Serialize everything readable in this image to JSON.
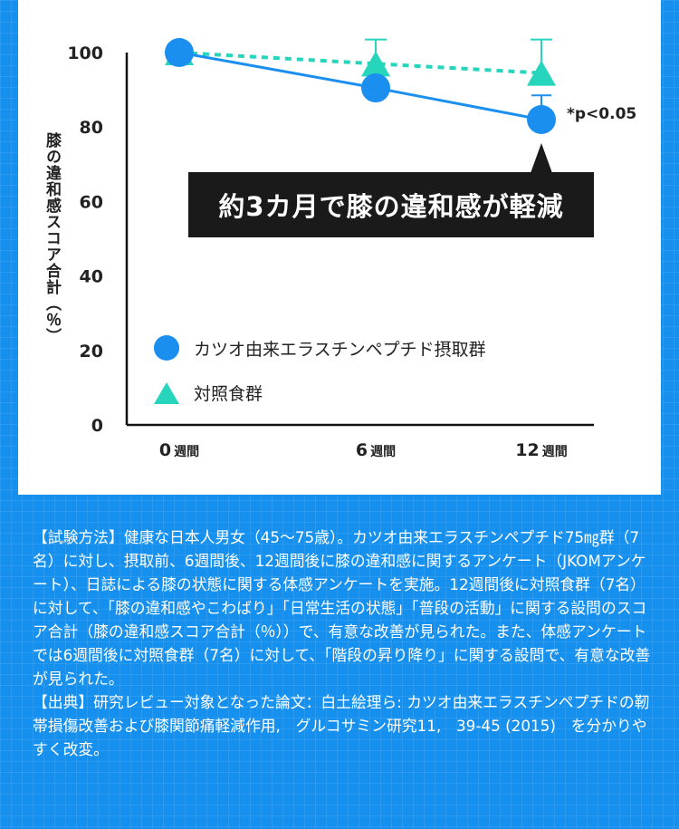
{
  "chart_data": {
    "type": "line",
    "ylabel": "膝の違和感スコア合計（％）",
    "ylim": [
      0,
      100
    ],
    "yticks": [
      "0",
      "20",
      "40",
      "60",
      "80",
      "100"
    ],
    "categories": [
      {
        "num": "0",
        "unit": "週間"
      },
      {
        "num": "6",
        "unit": "週間"
      },
      {
        "num": "12",
        "unit": "週間"
      }
    ],
    "x": [
      0,
      6,
      12
    ],
    "series": [
      {
        "name": "カツオ由来エラスチンペプチド摂取群",
        "marker": "circle",
        "line": "solid",
        "color": "#1b8ff0",
        "values": [
          100,
          90.5,
          82
        ],
        "error_upper": [
          0,
          0,
          6.5
        ]
      },
      {
        "name": "対照食群",
        "marker": "triangle",
        "line": "dashed",
        "color": "#26d5bc",
        "values": [
          100,
          97,
          94.5
        ],
        "error_upper": [
          0,
          6.5,
          9
        ]
      }
    ],
    "annotation": "*p<0.05",
    "callout": "約3カ月で膝の違和感が軽減"
  },
  "footnote": {
    "method": "【試験方法】健康な日本人男女（45〜75歳）。カツオ由来エラスチンペプチド75㎎群（7名）に対し、摂取前、6週間後、12週間後に膝の違和感に関するアンケート（JKOMアンケート）、日誌による膝の状態に関する体感アンケートを実施。12週間後に対照食群（7名）に対して、「膝の違和感やこわばり」「日常生活の状態」「普段の活動」に関する設問のスコア合計（膝の違和感スコア合計（％））で、有意な改善が見られた。また、体感アンケートでは6週間後に対照食群（7名）に対して、「階段の昇り降り」に関する設問で、有意な改善が見られた。",
    "source": "【出典】研究レビュー対象となった論文：白土絵理ら: カツオ由来エラスチンペプチドの靭帯損傷改善および膝関節痛軽減作用,　グルコサミン研究11,　39-45 (2015)　を分かりやすく改変。"
  },
  "colors": {
    "background": "#1590ee",
    "treatment": "#1b8ff0",
    "control": "#26d5bc",
    "callout": "#1a1a1a"
  }
}
